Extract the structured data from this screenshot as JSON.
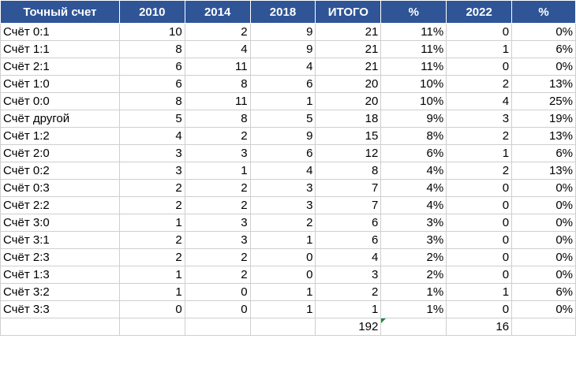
{
  "sheet": {
    "headers": [
      "Точный счет",
      "2010",
      "2014",
      "2018",
      "ИТОГО",
      "%",
      "2022",
      "%"
    ],
    "rows": [
      [
        "Счёт 0:1",
        "10",
        "2",
        "9",
        "21",
        "11%",
        "0",
        "0%"
      ],
      [
        "Счёт 1:1",
        "8",
        "4",
        "9",
        "21",
        "11%",
        "1",
        "6%"
      ],
      [
        "Счёт 2:1",
        "6",
        "11",
        "4",
        "21",
        "11%",
        "0",
        "0%"
      ],
      [
        "Счёт 1:0",
        "6",
        "8",
        "6",
        "20",
        "10%",
        "2",
        "13%"
      ],
      [
        "Счёт 0:0",
        "8",
        "11",
        "1",
        "20",
        "10%",
        "4",
        "25%"
      ],
      [
        "Счёт другой",
        "5",
        "8",
        "5",
        "18",
        "9%",
        "3",
        "19%"
      ],
      [
        "Счёт 1:2",
        "4",
        "2",
        "9",
        "15",
        "8%",
        "2",
        "13%"
      ],
      [
        "Счёт 2:0",
        "3",
        "3",
        "6",
        "12",
        "6%",
        "1",
        "6%"
      ],
      [
        "Счёт 0:2",
        "3",
        "1",
        "4",
        "8",
        "4%",
        "2",
        "13%"
      ],
      [
        "Счёт 0:3",
        "2",
        "2",
        "3",
        "7",
        "4%",
        "0",
        "0%"
      ],
      [
        "Счёт 2:2",
        "2",
        "2",
        "3",
        "7",
        "4%",
        "0",
        "0%"
      ],
      [
        "Счёт 3:0",
        "1",
        "3",
        "2",
        "6",
        "3%",
        "0",
        "0%"
      ],
      [
        "Счёт 3:1",
        "2",
        "3",
        "1",
        "6",
        "3%",
        "0",
        "0%"
      ],
      [
        "Счёт 2:3",
        "2",
        "2",
        "0",
        "4",
        "2%",
        "0",
        "0%"
      ],
      [
        "Счёт 1:3",
        "1",
        "2",
        "0",
        "3",
        "2%",
        "0",
        "0%"
      ],
      [
        "Счёт 3:2",
        "1",
        "0",
        "1",
        "2",
        "1%",
        "1",
        "6%"
      ],
      [
        "Счёт 3:3",
        "0",
        "0",
        "1",
        "1",
        "1%",
        "0",
        "0%"
      ]
    ],
    "totals": [
      "",
      "",
      "",
      "",
      "192",
      "",
      "16",
      ""
    ],
    "colors": {
      "header_bg": "#2f5597",
      "header_text": "#ffffff",
      "grid": "#cfcfcf",
      "error_flag": "#1e8c3a"
    }
  }
}
